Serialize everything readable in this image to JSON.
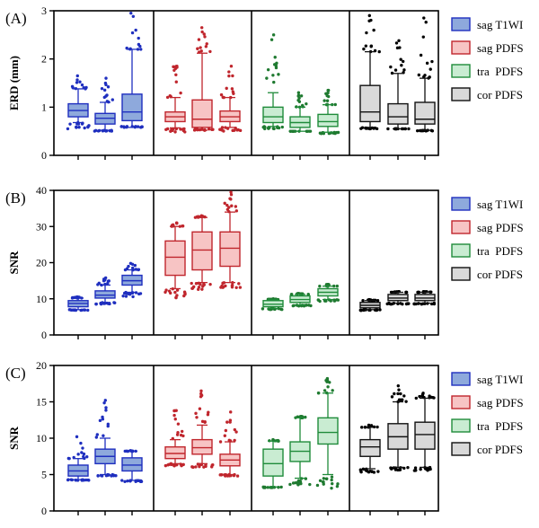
{
  "chart_data": [
    {
      "type": "box",
      "panel_label": "(A)",
      "ylabel": "ERD (mm)",
      "ylim": [
        0,
        3
      ],
      "yticks": [
        0,
        1,
        2,
        3
      ],
      "ytick_labels": [
        "0",
        "1",
        "2",
        "3"
      ],
      "groups": [
        {
          "series": "sag T1WI",
          "boxes": [
            {
              "min": 0.55,
              "q1": 0.8,
              "median": 0.93,
              "q3": 1.07,
              "max": 1.65,
              "whisker_low": 0.68,
              "whisker_high": 1.38
            },
            {
              "min": 0.5,
              "q1": 0.65,
              "median": 0.77,
              "q3": 0.87,
              "max": 1.6,
              "whisker_low": 0.52,
              "whisker_high": 1.1
            },
            {
              "min": 0.6,
              "q1": 0.72,
              "median": 0.9,
              "q3": 1.27,
              "max": 2.95,
              "whisker_low": 0.58,
              "whisker_high": 2.2
            }
          ]
        },
        {
          "series": "sag PDFS",
          "boxes": [
            {
              "min": 0.48,
              "q1": 0.7,
              "median": 0.8,
              "q3": 0.9,
              "max": 1.85,
              "whisker_low": 0.57,
              "whisker_high": 1.2
            },
            {
              "min": 0.55,
              "q1": 0.58,
              "median": 0.75,
              "q3": 1.15,
              "max": 2.65,
              "whisker_low": 0.52,
              "whisker_high": 2.12
            },
            {
              "min": 0.5,
              "q1": 0.7,
              "median": 0.8,
              "q3": 0.92,
              "max": 1.85,
              "whisker_low": 0.58,
              "whisker_high": 1.2
            }
          ]
        },
        {
          "series": "tra PDFS",
          "boxes": [
            {
              "min": 0.55,
              "q1": 0.68,
              "median": 0.8,
              "q3": 1.0,
              "max": 2.5,
              "whisker_low": 0.6,
              "whisker_high": 1.3
            },
            {
              "min": 0.5,
              "q1": 0.58,
              "median": 0.68,
              "q3": 0.8,
              "max": 1.3,
              "whisker_low": 0.5,
              "whisker_high": 1.0
            },
            {
              "min": 0.45,
              "q1": 0.6,
              "median": 0.7,
              "q3": 0.85,
              "max": 1.35,
              "whisker_low": 0.48,
              "whisker_high": 1.05
            }
          ]
        },
        {
          "series": "cor PDFS",
          "boxes": [
            {
              "min": 0.55,
              "q1": 0.7,
              "median": 0.9,
              "q3": 1.45,
              "max": 2.9,
              "whisker_low": 0.58,
              "whisker_high": 2.15
            },
            {
              "min": 0.55,
              "q1": 0.65,
              "median": 0.8,
              "q3": 1.07,
              "max": 2.38,
              "whisker_low": 0.55,
              "whisker_high": 1.7
            },
            {
              "min": 0.5,
              "q1": 0.65,
              "median": 0.75,
              "q3": 1.1,
              "max": 2.85,
              "whisker_low": 0.52,
              "whisker_high": 1.6
            }
          ]
        }
      ]
    },
    {
      "type": "box",
      "panel_label": "(B)",
      "ylabel": "SNR",
      "ylim": [
        0,
        40
      ],
      "yticks": [
        0,
        10,
        20,
        30,
        40
      ],
      "ytick_labels": [
        "0",
        "10",
        "20",
        "30",
        "40"
      ],
      "groups": [
        {
          "series": "sag T1WI",
          "boxes": [
            {
              "min": 6.8,
              "q1": 7.8,
              "median": 8.7,
              "q3": 9.5,
              "max": 10.5,
              "whisker_low": 7.0,
              "whisker_high": 10.2
            },
            {
              "min": 8.5,
              "q1": 10.2,
              "median": 11.0,
              "q3": 12.2,
              "max": 15.8,
              "whisker_low": 9.0,
              "whisker_high": 13.8
            },
            {
              "min": 10.5,
              "q1": 13.8,
              "median": 15.0,
              "q3": 16.5,
              "max": 19.8,
              "whisker_low": 11.8,
              "whisker_high": 18.0
            }
          ]
        },
        {
          "series": "sag PDFS",
          "boxes": [
            {
              "min": 10.0,
              "q1": 16.5,
              "median": 21.5,
              "q3": 26.0,
              "max": 31.0,
              "whisker_low": 12.8,
              "whisker_high": 30.0
            },
            {
              "min": 12.5,
              "q1": 18.0,
              "median": 23.5,
              "q3": 28.5,
              "max": 33.0,
              "whisker_low": 14.5,
              "whisker_high": 32.5
            },
            {
              "min": 13.0,
              "q1": 19.0,
              "median": 24.0,
              "q3": 28.5,
              "max": 39.5,
              "whisker_low": 14.5,
              "whisker_high": 34.0
            }
          ]
        },
        {
          "series": "tra PDFS",
          "boxes": [
            {
              "min": 7.0,
              "q1": 7.8,
              "median": 8.5,
              "q3": 9.5,
              "max": 10.0,
              "whisker_low": 7.3,
              "whisker_high": 9.8
            },
            {
              "min": 8.0,
              "q1": 9.0,
              "median": 9.8,
              "q3": 10.8,
              "max": 11.5,
              "whisker_low": 8.3,
              "whisker_high": 11.2
            },
            {
              "min": 9.2,
              "q1": 10.8,
              "median": 11.8,
              "q3": 12.8,
              "max": 14.0,
              "whisker_low": 9.8,
              "whisker_high": 13.5
            }
          ]
        },
        {
          "series": "cor PDFS",
          "boxes": [
            {
              "min": 6.8,
              "q1": 7.5,
              "median": 8.2,
              "q3": 9.0,
              "max": 9.8,
              "whisker_low": 7.0,
              "whisker_high": 9.5
            },
            {
              "min": 8.5,
              "q1": 9.5,
              "median": 10.2,
              "q3": 11.2,
              "max": 12.0,
              "whisker_low": 8.8,
              "whisker_high": 11.8
            },
            {
              "min": 8.5,
              "q1": 9.5,
              "median": 10.2,
              "q3": 11.2,
              "max": 12.0,
              "whisker_low": 8.8,
              "whisker_high": 11.8
            }
          ]
        }
      ]
    },
    {
      "type": "box",
      "panel_label": "(C)",
      "ylabel": "SNR",
      "ylim": [
        0,
        20
      ],
      "yticks": [
        0,
        5,
        10,
        15,
        20
      ],
      "ytick_labels": [
        "0",
        "5",
        "10",
        "15",
        "20"
      ],
      "groups": [
        {
          "series": "sag T1WI",
          "boxes": [
            {
              "min": 4.2,
              "q1": 4.8,
              "median": 5.5,
              "q3": 6.3,
              "max": 10.2,
              "whisker_low": 4.3,
              "whisker_high": 7.2
            },
            {
              "min": 4.8,
              "q1": 6.5,
              "median": 7.5,
              "q3": 8.5,
              "max": 15.2,
              "whisker_low": 5.0,
              "whisker_high": 10.0
            },
            {
              "min": 4.0,
              "q1": 5.5,
              "median": 6.3,
              "q3": 7.3,
              "max": 8.3,
              "whisker_low": 4.2,
              "whisker_high": 8.2
            }
          ]
        },
        {
          "series": "sag PDFS",
          "boxes": [
            {
              "min": 6.2,
              "q1": 7.2,
              "median": 7.9,
              "q3": 8.8,
              "max": 13.8,
              "whisker_low": 6.5,
              "whisker_high": 9.8
            },
            {
              "min": 6.0,
              "q1": 7.8,
              "median": 8.7,
              "q3": 9.8,
              "max": 16.5,
              "whisker_low": 6.5,
              "whisker_high": 11.8
            },
            {
              "min": 4.8,
              "q1": 6.2,
              "median": 7.0,
              "q3": 7.8,
              "max": 13.6,
              "whisker_low": 5.0,
              "whisker_high": 9.5
            }
          ]
        },
        {
          "series": "tra PDFS",
          "boxes": [
            {
              "min": 3.2,
              "q1": 4.8,
              "median": 6.5,
              "q3": 8.5,
              "max": 9.8,
              "whisker_low": 3.3,
              "whisker_high": 9.6
            },
            {
              "min": 3.6,
              "q1": 6.8,
              "median": 8.2,
              "q3": 9.5,
              "max": 13.0,
              "whisker_low": 4.5,
              "whisker_high": 12.8
            },
            {
              "min": 3.0,
              "q1": 9.2,
              "median": 10.8,
              "q3": 12.8,
              "max": 18.2,
              "whisker_low": 5.0,
              "whisker_high": 16.2
            }
          ]
        },
        {
          "series": "cor PDFS",
          "boxes": [
            {
              "min": 5.3,
              "q1": 7.5,
              "median": 8.8,
              "q3": 9.8,
              "max": 11.8,
              "whisker_low": 5.8,
              "whisker_high": 11.5
            },
            {
              "min": 5.5,
              "q1": 8.5,
              "median": 10.2,
              "q3": 12.0,
              "max": 17.2,
              "whisker_low": 6.0,
              "whisker_high": 15.0
            },
            {
              "min": 5.5,
              "q1": 8.5,
              "median": 10.5,
              "q3": 12.2,
              "max": 16.2,
              "whisker_low": 6.0,
              "whisker_high": 15.5
            }
          ]
        }
      ]
    }
  ],
  "legend": [
    {
      "label": "sag T1WI",
      "fill": "#8ea9dc",
      "edge": "#1f2fbf",
      "dot": "#1f2fbf"
    },
    {
      "label": "sag PDFS",
      "fill": "#f7c4c4",
      "edge": "#c0262d",
      "dot": "#c0262d"
    },
    {
      "label": "tra  PDFS",
      "fill": "#c9ecd2",
      "edge": "#1f8b3a",
      "dot": "#1f7a30"
    },
    {
      "label": "cor PDFS",
      "fill": "#d9d9d9",
      "edge": "#111111",
      "dot": "#000000"
    }
  ]
}
